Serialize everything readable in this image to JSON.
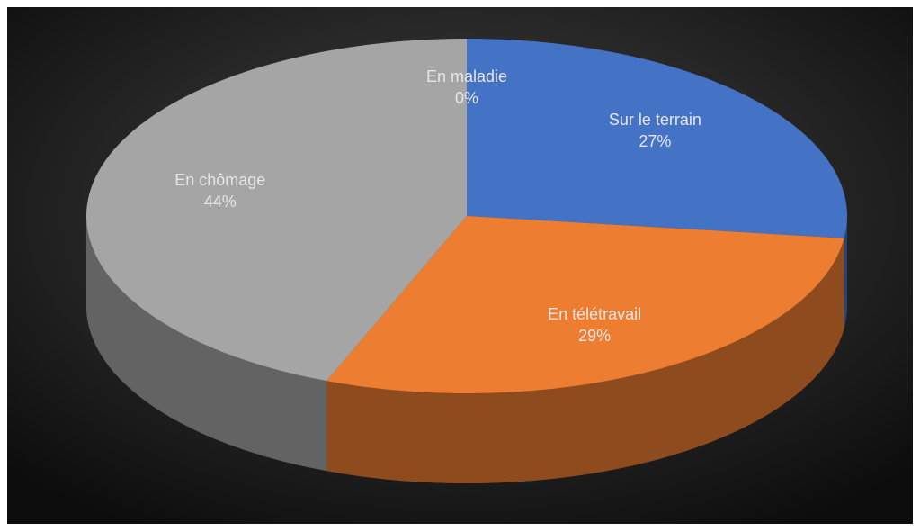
{
  "chart_data": {
    "type": "pie",
    "categories": [
      "Sur le terrain",
      "En télétravail",
      "En chômage",
      "En maladie"
    ],
    "values": [
      27,
      29,
      44,
      0
    ],
    "value_labels": [
      "27%",
      "29%",
      "44%",
      "0%"
    ],
    "colors": [
      "#4472c4",
      "#ed7d31",
      "#a5a5a5",
      "#ffc000"
    ]
  }
}
